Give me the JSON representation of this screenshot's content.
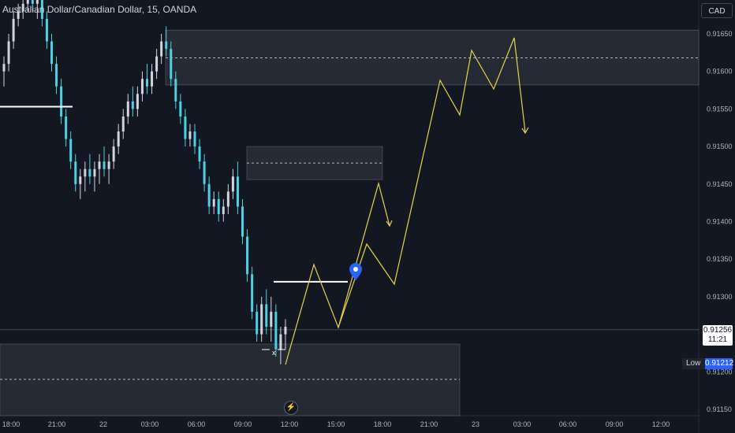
{
  "header": {
    "symbol_title": "Australian Dollar/Canadian Dollar, 15, OANDA",
    "currency": "CAD"
  },
  "price_badge": {
    "price": "0.91256",
    "countdown": "11:21"
  },
  "low_tag": {
    "label": "Low",
    "value": "0.91212"
  },
  "colors": {
    "background": "#131722",
    "up": "#d1d4dc",
    "down": "#4dd0e1",
    "zone": "#363a45",
    "forecast": "#e6d24a",
    "marker": "#2962ff"
  },
  "chart_data": {
    "type": "candlestick",
    "ylim": [
      0.9113,
      0.91685
    ],
    "y_ticks": [
      "0.91650",
      "0.91600",
      "0.91550",
      "0.91500",
      "0.91450",
      "0.91400",
      "0.91350",
      "0.91300",
      "0.91200",
      "0.91150"
    ],
    "x_ticks": [
      "18:00",
      "21:00",
      "22",
      "03:00",
      "06:00",
      "09:00",
      "12:00",
      "15:00",
      "18:00",
      "21:00",
      "23",
      "03:00",
      "06:00",
      "09:00",
      "12:00"
    ],
    "candles": [
      [
        0.916,
        0.9162,
        0.9158,
        0.9161
      ],
      [
        0.9161,
        0.9165,
        0.916,
        0.9164
      ],
      [
        0.9164,
        0.9168,
        0.9163,
        0.9167
      ],
      [
        0.9167,
        0.9169,
        0.9166,
        0.9168
      ],
      [
        0.9168,
        0.917,
        0.9167,
        0.9169
      ],
      [
        0.9169,
        0.9171,
        0.9168,
        0.917
      ],
      [
        0.917,
        0.9172,
        0.9168,
        0.9169
      ],
      [
        0.9169,
        0.9171,
        0.9167,
        0.917
      ],
      [
        0.917,
        0.9171,
        0.9166,
        0.9167
      ],
      [
        0.9167,
        0.9168,
        0.9163,
        0.9164
      ],
      [
        0.9164,
        0.9165,
        0.916,
        0.9161
      ],
      [
        0.9161,
        0.9162,
        0.9157,
        0.9158
      ],
      [
        0.9158,
        0.9159,
        0.9153,
        0.9154
      ],
      [
        0.9154,
        0.9155,
        0.915,
        0.9151
      ],
      [
        0.9151,
        0.9152,
        0.9147,
        0.9148
      ],
      [
        0.9148,
        0.9149,
        0.9144,
        0.9145
      ],
      [
        0.9145,
        0.9147,
        0.9143,
        0.9146
      ],
      [
        0.9146,
        0.9148,
        0.9144,
        0.9147
      ],
      [
        0.9147,
        0.9149,
        0.9145,
        0.9146
      ],
      [
        0.9146,
        0.9148,
        0.9144,
        0.9147
      ],
      [
        0.9147,
        0.9149,
        0.9145,
        0.9148
      ],
      [
        0.9148,
        0.915,
        0.9146,
        0.9147
      ],
      [
        0.9147,
        0.9149,
        0.9145,
        0.9148
      ],
      [
        0.9148,
        0.9151,
        0.9147,
        0.915
      ],
      [
        0.915,
        0.9153,
        0.9149,
        0.9152
      ],
      [
        0.9152,
        0.9155,
        0.9151,
        0.9154
      ],
      [
        0.9154,
        0.9157,
        0.9153,
        0.9156
      ],
      [
        0.9156,
        0.9158,
        0.9154,
        0.9155
      ],
      [
        0.9155,
        0.9158,
        0.9154,
        0.9157
      ],
      [
        0.9157,
        0.916,
        0.9156,
        0.9159
      ],
      [
        0.9159,
        0.9161,
        0.9157,
        0.9158
      ],
      [
        0.9158,
        0.9161,
        0.9157,
        0.916
      ],
      [
        0.916,
        0.9163,
        0.9159,
        0.9162
      ],
      [
        0.9162,
        0.9165,
        0.9161,
        0.9164
      ],
      [
        0.9164,
        0.9166,
        0.9162,
        0.9163
      ],
      [
        0.9163,
        0.9164,
        0.9158,
        0.9159
      ],
      [
        0.9159,
        0.916,
        0.9155,
        0.9156
      ],
      [
        0.9156,
        0.9157,
        0.9153,
        0.9154
      ],
      [
        0.9154,
        0.9155,
        0.915,
        0.9151
      ],
      [
        0.9151,
        0.9153,
        0.915,
        0.9152
      ],
      [
        0.9152,
        0.9153,
        0.9149,
        0.915
      ],
      [
        0.915,
        0.9151,
        0.9147,
        0.9148
      ],
      [
        0.9148,
        0.9149,
        0.9144,
        0.9145
      ],
      [
        0.9145,
        0.9146,
        0.9141,
        0.9142
      ],
      [
        0.9142,
        0.9144,
        0.9141,
        0.9143
      ],
      [
        0.9143,
        0.9144,
        0.914,
        0.9141
      ],
      [
        0.9141,
        0.9143,
        0.914,
        0.9142
      ],
      [
        0.9142,
        0.9145,
        0.9141,
        0.9144
      ],
      [
        0.9144,
        0.9147,
        0.9143,
        0.9146
      ],
      [
        0.9146,
        0.9148,
        0.9141,
        0.9142
      ],
      [
        0.9142,
        0.9143,
        0.9137,
        0.9138
      ],
      [
        0.9138,
        0.9139,
        0.9132,
        0.9133
      ],
      [
        0.9133,
        0.9134,
        0.9127,
        0.9128
      ],
      [
        0.9128,
        0.9129,
        0.9124,
        0.9125
      ],
      [
        0.9125,
        0.913,
        0.9124,
        0.9129
      ],
      [
        0.9129,
        0.9131,
        0.9125,
        0.9126
      ],
      [
        0.9126,
        0.913,
        0.9124,
        0.9128
      ],
      [
        0.9128,
        0.9129,
        0.9122,
        0.9123
      ],
      [
        0.9123,
        0.9126,
        0.9121,
        0.9125
      ],
      [
        0.9125,
        0.9127,
        0.9123,
        0.9126
      ]
    ],
    "supply_zones": [
      {
        "top": 0.91655,
        "bottom": 0.91582,
        "mid": 0.91618
      },
      {
        "top": 0.915,
        "bottom": 0.91456,
        "mid": 0.91478
      },
      {
        "top": 0.91237,
        "bottom": 0.9114,
        "mid": 0.9119
      }
    ],
    "level_lines": [
      0.91553,
      0.9132
    ],
    "current_price": 0.91256,
    "low_price": 0.91212,
    "forecast_path_1": [
      [
        0.9121,
        0
      ],
      [
        0.9134,
        1
      ],
      [
        0.9126,
        2
      ],
      [
        0.9145,
        3
      ],
      [
        0.914,
        4
      ]
    ],
    "forecast_path_2": [
      [
        0.9126,
        0
      ],
      [
        0.9134,
        1
      ],
      [
        0.9132,
        2
      ],
      [
        0.916,
        3
      ],
      [
        0.9154,
        4
      ],
      [
        0.9163,
        5
      ],
      [
        0.9158,
        6
      ],
      [
        0.9164,
        7
      ],
      [
        0.9152,
        8
      ]
    ],
    "x_marker": "x"
  }
}
